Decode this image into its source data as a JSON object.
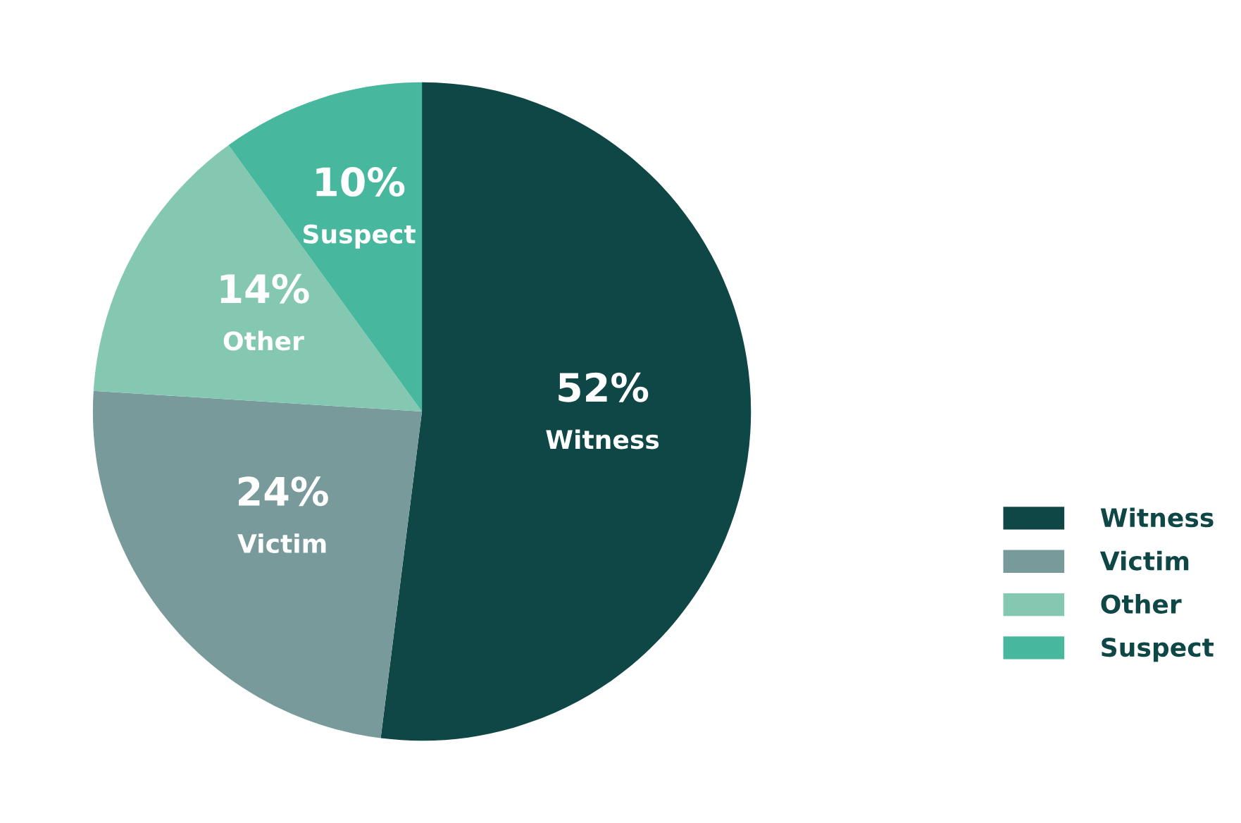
{
  "chart_data": {
    "type": "pie",
    "categories": [
      "Witness",
      "Victim",
      "Other",
      "Suspect"
    ],
    "values": [
      52,
      24,
      14,
      10
    ],
    "value_labels": [
      "52%",
      "24%",
      "14%",
      "10%"
    ],
    "colors": [
      "#0f4646",
      "#789a9a",
      "#85c8b2",
      "#47b89d"
    ],
    "legend": "right"
  }
}
